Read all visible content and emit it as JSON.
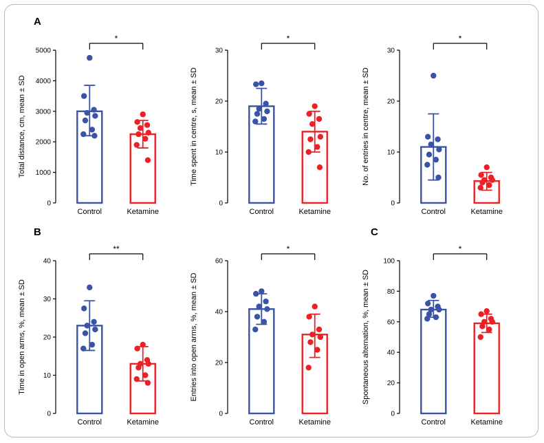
{
  "figure": {
    "panel_labels": [
      "A",
      "B",
      "C"
    ],
    "colors": {
      "control": "#3A53A4",
      "ketamine": "#EC2027",
      "axis": "#000000"
    }
  },
  "chart_data": [
    {
      "type": "bar",
      "title": "",
      "ylabel": "Total distance, cm, mean ± SD",
      "xlabel": "",
      "categories": [
        "Control",
        "Ketamine"
      ],
      "ylim": [
        0,
        5000
      ],
      "yticks": [
        0,
        1000,
        2000,
        3000,
        4000,
        5000
      ],
      "grid": false,
      "legend": "none",
      "significance": "*",
      "series": [
        {
          "name": "Control",
          "color": "#3A53A4",
          "mean": 3000,
          "sd_range": [
            2200,
            3850
          ],
          "points": [
            4750,
            3500,
            3050,
            2950,
            2850,
            2700,
            2400,
            2250,
            2200
          ]
        },
        {
          "name": "Ketamine",
          "color": "#EC2027",
          "mean": 2250,
          "sd_range": [
            1800,
            2700
          ],
          "points": [
            2900,
            2650,
            2550,
            2450,
            2300,
            2250,
            2100,
            1900,
            1400
          ]
        }
      ]
    },
    {
      "type": "bar",
      "title": "",
      "ylabel": "Time spent in centre, s, mean ± SD",
      "xlabel": "",
      "categories": [
        "Control",
        "Ketamine"
      ],
      "ylim": [
        0,
        30
      ],
      "yticks": [
        0,
        10,
        20,
        30
      ],
      "grid": false,
      "legend": "none",
      "significance": "*",
      "series": [
        {
          "name": "Control",
          "color": "#3A53A4",
          "mean": 19,
          "sd_range": [
            15.5,
            22.5
          ],
          "points": [
            23.5,
            23.3,
            19.5,
            18.5,
            18,
            17.5,
            16.5,
            16
          ]
        },
        {
          "name": "Ketamine",
          "color": "#EC2027",
          "mean": 14,
          "sd_range": [
            10,
            18
          ],
          "points": [
            19,
            17.5,
            16.5,
            15.5,
            13,
            12.5,
            11,
            10,
            7
          ]
        }
      ]
    },
    {
      "type": "bar",
      "title": "",
      "ylabel": "No. of entries in centre, mean ± SD",
      "xlabel": "",
      "categories": [
        "Control",
        "Ketamine"
      ],
      "ylim": [
        0,
        30
      ],
      "yticks": [
        0,
        10,
        20,
        30
      ],
      "grid": false,
      "legend": "none",
      "significance": "*",
      "series": [
        {
          "name": "Control",
          "color": "#3A53A4",
          "mean": 11,
          "sd_range": [
            4.5,
            17.5
          ],
          "points": [
            25,
            13,
            12.5,
            11.5,
            10.5,
            9.5,
            8.5,
            7.5,
            5
          ]
        },
        {
          "name": "Ketamine",
          "color": "#EC2027",
          "mean": 4.3,
          "sd_range": [
            2.5,
            6
          ],
          "points": [
            7,
            5.5,
            5,
            4.5,
            4.5,
            4,
            3.5,
            3
          ]
        }
      ]
    },
    {
      "type": "bar",
      "title": "",
      "ylabel": "Time in open arms, %, mean ± SD",
      "xlabel": "",
      "categories": [
        "Control",
        "Ketamine"
      ],
      "ylim": [
        0,
        40
      ],
      "yticks": [
        0,
        10,
        20,
        30,
        40
      ],
      "grid": false,
      "legend": "none",
      "significance": "**",
      "series": [
        {
          "name": "Control",
          "color": "#3A53A4",
          "mean": 23,
          "sd_range": [
            16.5,
            29.5
          ],
          "points": [
            33,
            27.5,
            24,
            23,
            22,
            21,
            18,
            17
          ]
        },
        {
          "name": "Ketamine",
          "color": "#EC2027",
          "mean": 13,
          "sd_range": [
            8.5,
            17.5
          ],
          "points": [
            18,
            17,
            14,
            13,
            13,
            12,
            10,
            9,
            8
          ]
        }
      ]
    },
    {
      "type": "bar",
      "title": "",
      "ylabel": "Entries into open arms, %, mean ± SD",
      "xlabel": "",
      "categories": [
        "Control",
        "Ketamine"
      ],
      "ylim": [
        0,
        60
      ],
      "yticks": [
        0,
        20,
        40,
        60
      ],
      "grid": false,
      "legend": "none",
      "significance": "*",
      "series": [
        {
          "name": "Control",
          "color": "#3A53A4",
          "mean": 41,
          "sd_range": [
            35,
            47
          ],
          "points": [
            48,
            47,
            44,
            42,
            41,
            38,
            36,
            33
          ]
        },
        {
          "name": "Ketamine",
          "color": "#EC2027",
          "mean": 31,
          "sd_range": [
            22,
            39
          ],
          "points": [
            42,
            38,
            33,
            31,
            30,
            28,
            25,
            18
          ]
        }
      ]
    },
    {
      "type": "bar",
      "title": "",
      "ylabel": "Spontaneous alternation, %, mean ± SD",
      "xlabel": "",
      "categories": [
        "Control",
        "Ketamine"
      ],
      "ylim": [
        0,
        100
      ],
      "yticks": [
        0,
        20,
        40,
        60,
        80,
        100
      ],
      "grid": false,
      "legend": "none",
      "significance": "*",
      "series": [
        {
          "name": "Control",
          "color": "#3A53A4",
          "mean": 68,
          "sd_range": [
            63,
            74
          ],
          "points": [
            77,
            72,
            70,
            68,
            68,
            65,
            63,
            62
          ]
        },
        {
          "name": "Ketamine",
          "color": "#EC2027",
          "mean": 59,
          "sd_range": [
            53,
            65
          ],
          "points": [
            67,
            65,
            62,
            60,
            60,
            57,
            55,
            50
          ]
        }
      ]
    }
  ]
}
